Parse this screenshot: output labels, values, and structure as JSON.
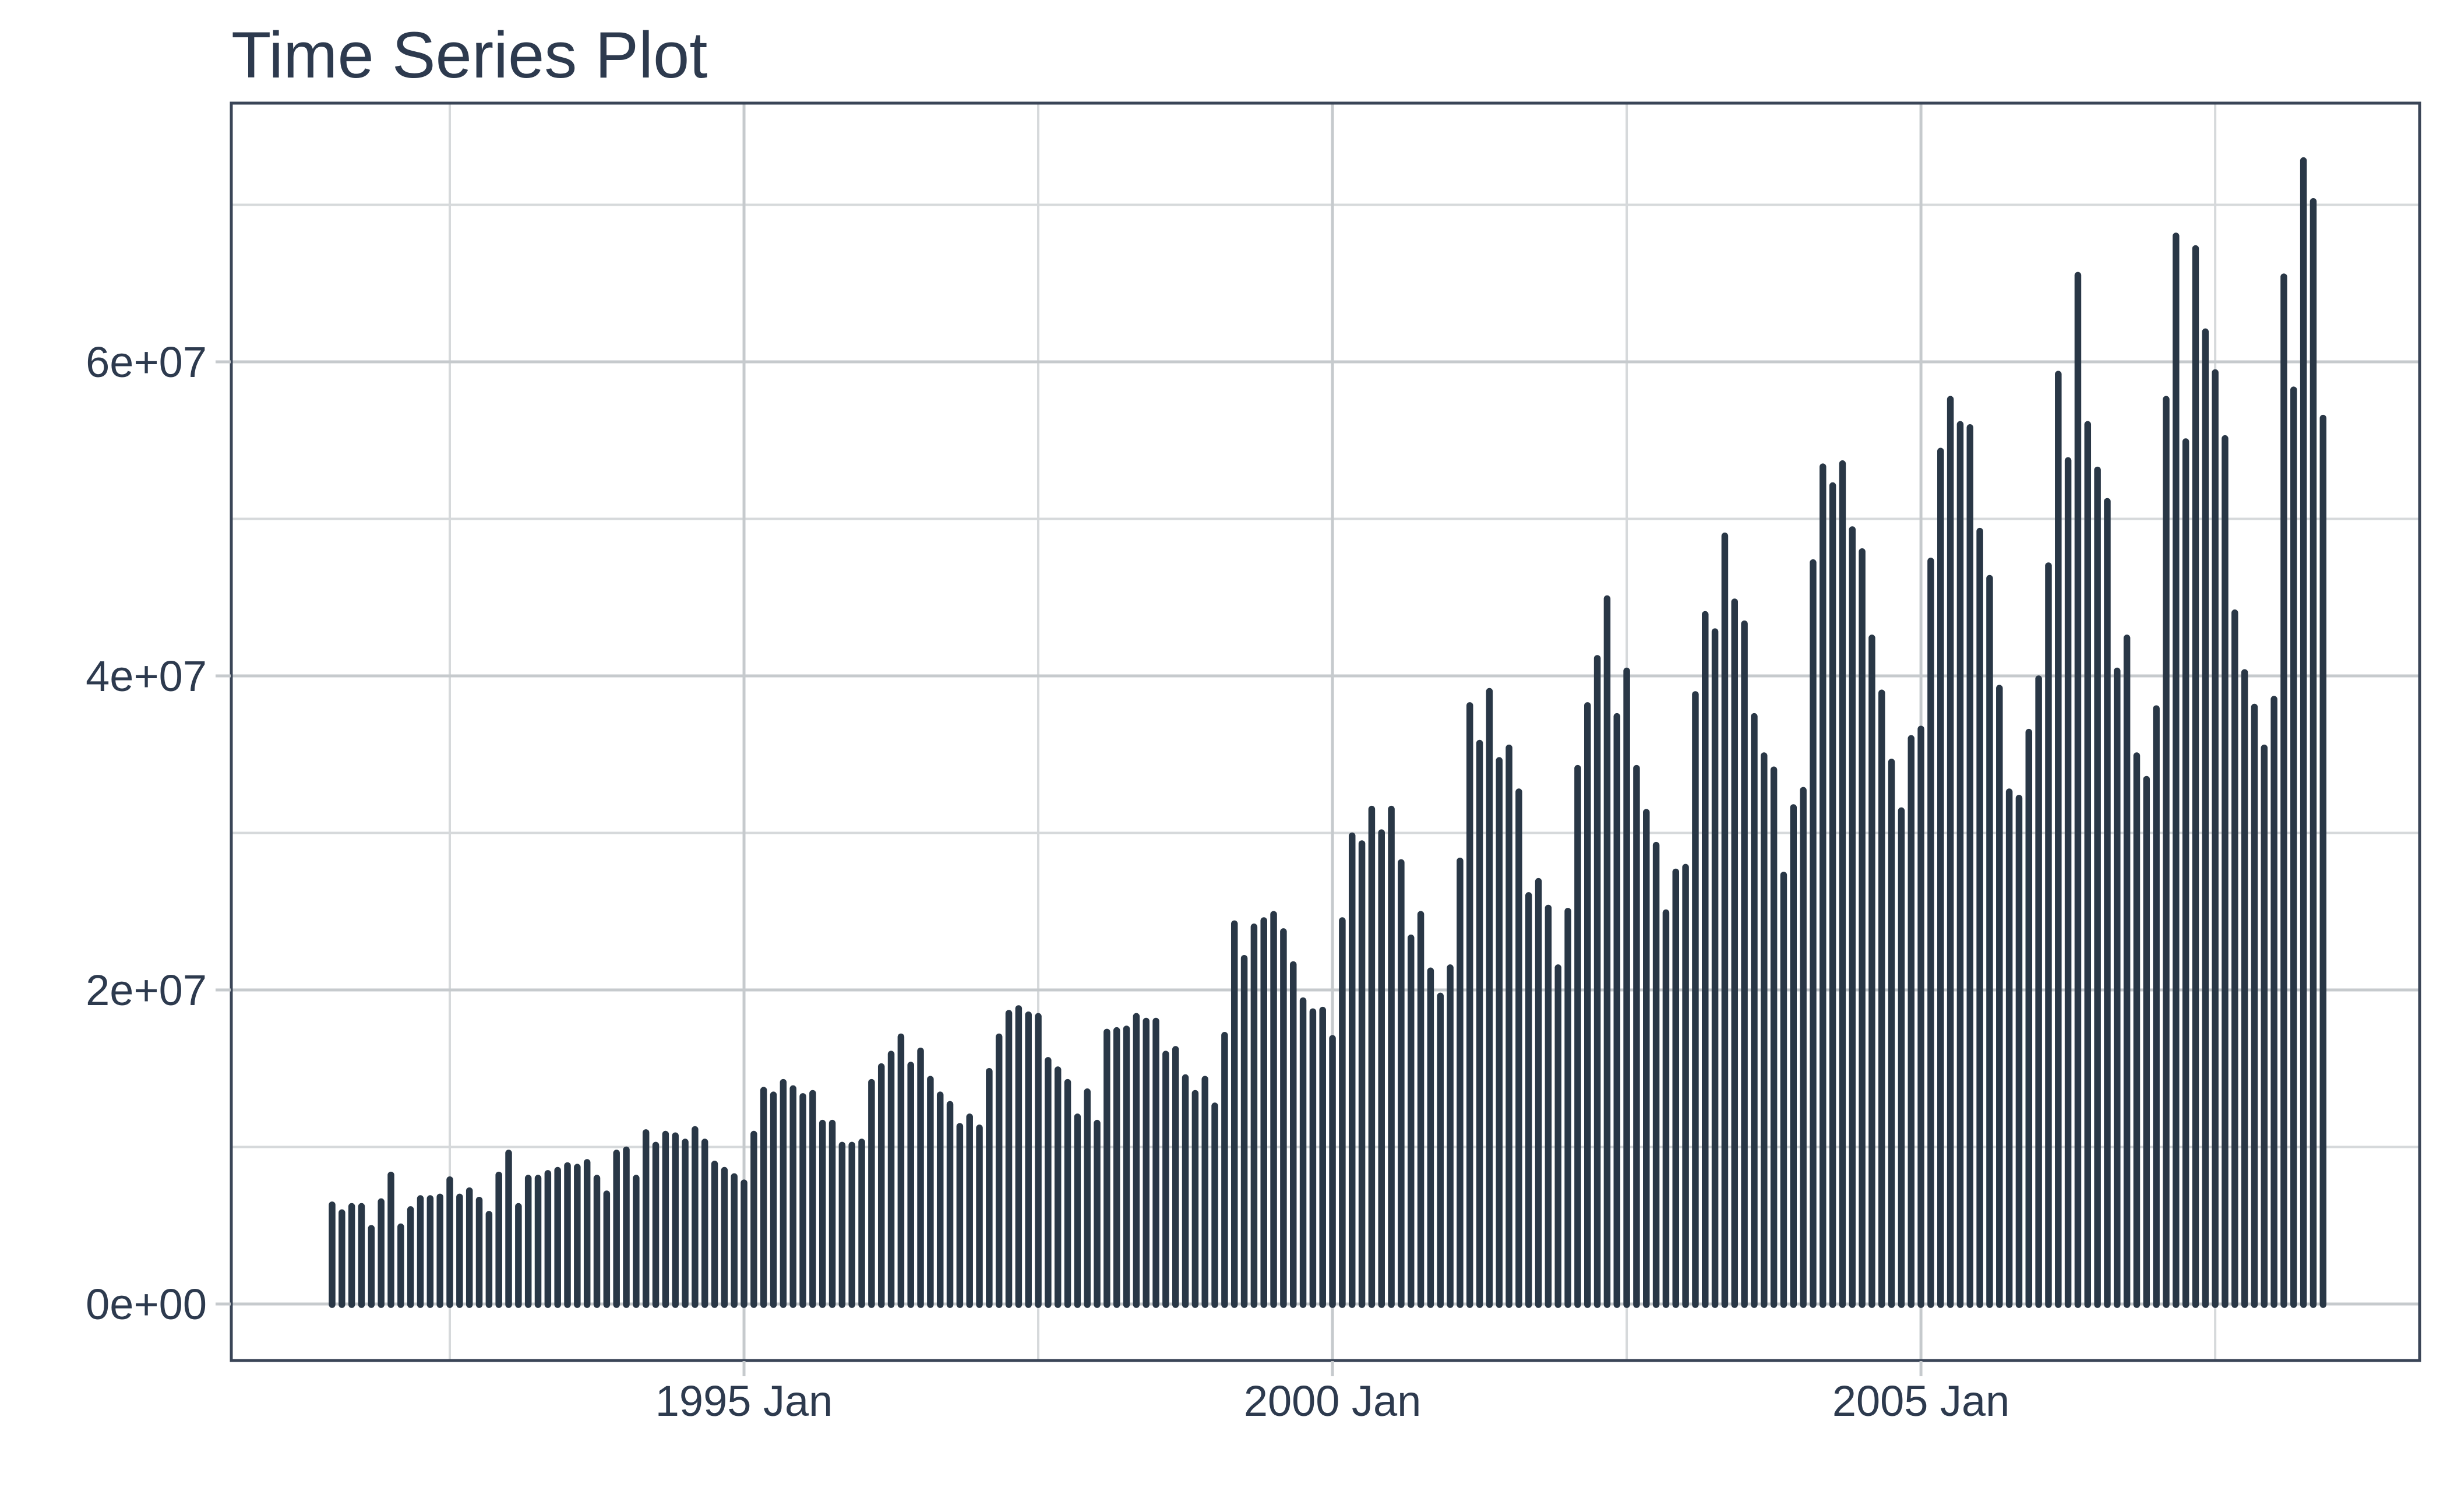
{
  "title": "Time Series Plot",
  "colors": {
    "bar": "#293746",
    "text": "#2d3a4e",
    "panel_border": "#3a4557",
    "grid_major": "#c6cacd",
    "grid_minor": "#d6d9db",
    "tick_mark": "#c6cacd",
    "background": "#ffffff"
  },
  "chart_data": {
    "type": "bar",
    "title": "Time Series Plot",
    "xlabel": "",
    "ylabel": "",
    "frequency": "monthly",
    "x_start": "1991-07",
    "x_end": "2008-06",
    "ylim": [
      0,
      73000000
    ],
    "grid": true,
    "legend": false,
    "y_major_values": [
      0,
      20000000,
      40000000,
      60000000
    ],
    "y_minor_values": [
      10000000,
      30000000,
      50000000,
      70000000
    ],
    "y_tick_labels": [
      "0e+00",
      "2e+07",
      "4e+07",
      "6e+07"
    ],
    "x_major_tick_dates": [
      "1995-01",
      "2000-01",
      "2005-01"
    ],
    "x_minor_tick_dates": [
      "1992-07",
      "1997-07",
      "2002-07",
      "2007-07"
    ],
    "x_tick_labels": [
      "1995 Jan",
      "2000 Jan",
      "2005 Jan"
    ],
    "values": [
      6500000,
      6000000,
      6400000,
      6400000,
      5000000,
      6700000,
      8400000,
      5100000,
      6200000,
      6900000,
      6900000,
      7000000,
      8100000,
      7000000,
      7400000,
      6800000,
      5900000,
      8400000,
      9800000,
      6400000,
      8200000,
      8200000,
      8500000,
      8700000,
      9000000,
      8900000,
      9200000,
      8200000,
      7200000,
      9800000,
      10000000,
      8200000,
      11100000,
      10300000,
      11000000,
      10900000,
      10500000,
      11300000,
      10500000,
      9100000,
      8700000,
      8300000,
      7900000,
      11000000,
      13800000,
      13500000,
      14300000,
      13900000,
      13400000,
      13600000,
      11700000,
      11700000,
      10300000,
      10300000,
      10500000,
      14300000,
      15300000,
      16100000,
      17200000,
      15400000,
      16300000,
      14500000,
      13500000,
      12900000,
      11500000,
      12100000,
      11400000,
      15000000,
      17200000,
      18700000,
      19000000,
      18600000,
      18500000,
      15700000,
      15100000,
      14300000,
      12100000,
      13700000,
      11700000,
      17500000,
      17600000,
      17700000,
      18500000,
      18200000,
      18200000,
      16100000,
      16400000,
      14600000,
      13600000,
      14500000,
      12800000,
      17300000,
      24400000,
      22200000,
      24200000,
      24600000,
      25000000,
      23900000,
      21800000,
      19500000,
      18800000,
      18900000,
      17100000,
      24600000,
      30000000,
      29500000,
      31700000,
      30200000,
      31700000,
      28300000,
      23500000,
      25000000,
      21400000,
      19800000,
      21600000,
      28400000,
      38300000,
      35900000,
      39200000,
      34800000,
      35600000,
      32800000,
      26200000,
      27100000,
      25400000,
      21600000,
      25200000,
      34300000,
      38300000,
      41300000,
      45100000,
      37600000,
      40500000,
      34300000,
      31500000,
      29400000,
      25100000,
      27700000,
      28000000,
      39000000,
      44100000,
      43000000,
      49100000,
      44900000,
      43500000,
      37600000,
      35100000,
      34200000,
      27500000,
      31800000,
      32900000,
      47400000,
      53500000,
      52300000,
      53700000,
      49500000,
      48100000,
      42600000,
      39100000,
      34700000,
      31600000,
      36200000,
      36800000,
      47500000,
      54500000,
      57800000,
      56200000,
      56000000,
      49400000,
      46400000,
      39400000,
      32800000,
      32400000,
      36600000,
      40000000,
      47200000,
      59400000,
      53900000,
      65700000,
      56200000,
      53300000,
      51300000,
      40500000,
      42600000,
      35100000,
      33600000,
      38100000,
      57800000,
      68200000,
      55100000,
      67400000,
      62100000,
      59500000,
      55300000,
      44200000,
      40400000,
      38200000,
      35600000,
      38700000,
      65600000,
      58400000,
      73000000,
      70400000,
      56600000
    ]
  }
}
